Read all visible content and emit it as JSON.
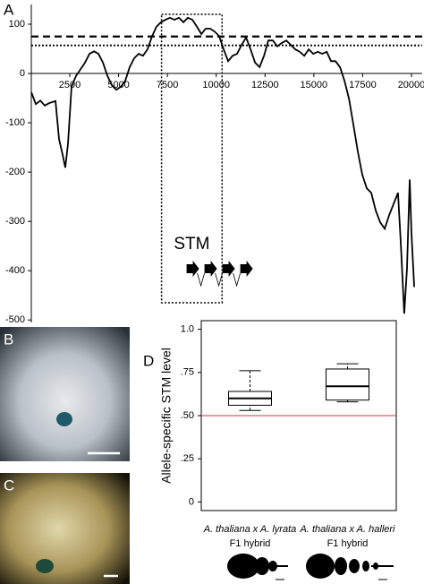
{
  "chart_data": [
    {
      "type": "line",
      "panel": "A",
      "x": [
        530,
        760,
        990,
        1220,
        1450,
        1770,
        1950,
        2130,
        2270,
        2410,
        2590,
        2820,
        3280,
        3510,
        3740,
        3970,
        4200,
        4430,
        4660,
        4880,
        5110,
        5340,
        5570,
        5800,
        6030,
        6250,
        6480,
        6720,
        6940,
        7170,
        7400,
        7630,
        7860,
        8090,
        8320,
        8550,
        8780,
        9010,
        9240,
        9460,
        9690,
        9920,
        10150,
        10380,
        10610,
        10840,
        11070,
        11300,
        11530,
        11760,
        11990,
        12220,
        12450,
        12670,
        12900,
        13130,
        13360,
        13590,
        13820,
        14050,
        14280,
        14510,
        14740,
        14970,
        15200,
        15430,
        15660,
        15880,
        16110,
        16340,
        16570,
        16800,
        17030,
        17260,
        17480,
        17710,
        17940,
        18170,
        18400,
        18630,
        18860,
        19080,
        19310,
        19450,
        19630,
        19770,
        19910,
        20000,
        20140
      ],
      "series": [
        {
          "color": "#000000",
          "values": [
            -38,
            -62,
            -55,
            -65,
            -60,
            -56,
            -133,
            -164,
            -191,
            -142,
            -27,
            -5,
            22,
            40,
            45,
            40,
            22,
            -5,
            -24,
            -33,
            -27,
            -15,
            13,
            31,
            40,
            36,
            49,
            76,
            95,
            104,
            109,
            113,
            109,
            113,
            104,
            113,
            109,
            95,
            80,
            91,
            91,
            85,
            76,
            49,
            25,
            36,
            40,
            58,
            73,
            49,
            22,
            13,
            36,
            67,
            67,
            55,
            62,
            67,
            58,
            49,
            44,
            36,
            49,
            40,
            44,
            40,
            44,
            25,
            25,
            13,
            -15,
            -51,
            -105,
            -160,
            -205,
            -233,
            -242,
            -278,
            -302,
            -315,
            -287,
            -265,
            -242,
            -342,
            -487,
            -396,
            -215,
            -324,
            -433
          ]
        }
      ],
      "xlim": [
        530,
        20550
      ],
      "xticks": [
        2500,
        5000,
        7500,
        10000,
        12500,
        15000,
        17500,
        20000
      ],
      "ylim": [
        -505,
        140
      ],
      "yticks": [
        -500,
        -400,
        -300,
        -200,
        -100,
        0,
        100
      ],
      "hlines": [
        {
          "value": 75,
          "style": "dashed"
        },
        {
          "value": 57,
          "style": "dotted"
        }
      ],
      "highlight": {
        "xlim": [
          7200,
          10300
        ],
        "ylim": [
          -465,
          120
        ],
        "label": "STM"
      }
    },
    {
      "type": "box",
      "panel": "D",
      "ylabel": "Allele-specific STM level",
      "categories": [
        "A. thaliana x A. lyrata",
        "A. thaliana x A. halleri"
      ],
      "category_sublabels": [
        "F1 hybrid",
        "F1 hybrid"
      ],
      "series": [
        {
          "color": "#000000",
          "min": [
            0.53,
            0.58
          ],
          "q1": [
            0.56,
            0.59
          ],
          "median": [
            0.6,
            0.67
          ],
          "q3": [
            0.64,
            0.77
          ],
          "max": [
            0.76,
            0.8
          ]
        }
      ],
      "ylim": [
        -0.05,
        1.05
      ],
      "yticks": [
        0,
        {
          "value": 0.25,
          "label": ".25"
        },
        {
          "value": 0.5,
          "label": ".50"
        },
        {
          "value": 0.75,
          "label": ".75"
        },
        {
          "value": 1.0,
          "label": "1.0"
        }
      ],
      "reference_line": {
        "value": 0.5,
        "color": "#e03030"
      }
    }
  ],
  "photos": [
    {
      "label": "B"
    },
    {
      "label": "C"
    }
  ]
}
